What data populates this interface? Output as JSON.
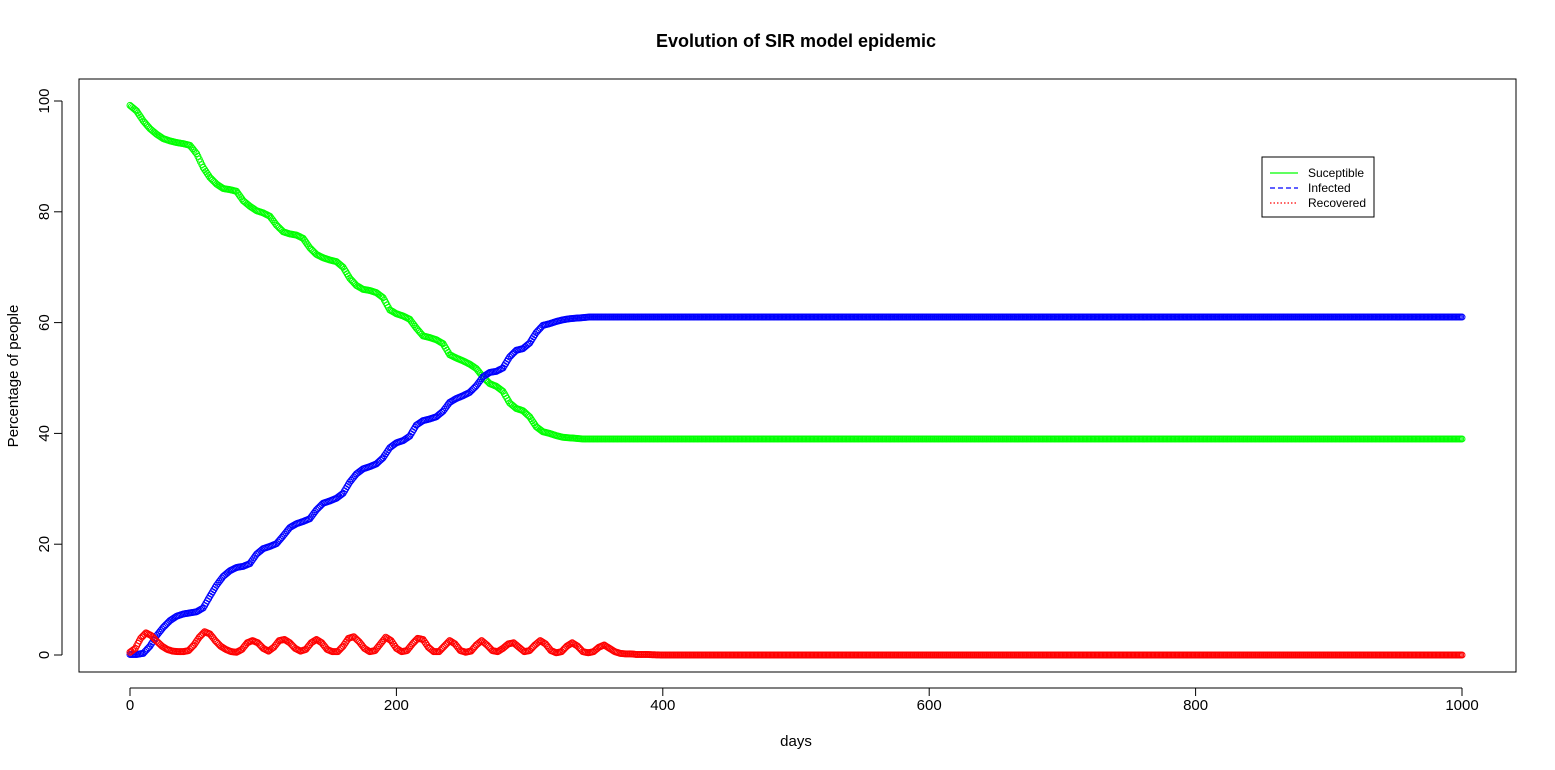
{
  "chart_data": {
    "type": "scatter",
    "title": "Evolution of SIR model epidemic",
    "xlabel": "days",
    "ylabel": "Percentage of people",
    "xlim": [
      0,
      1000
    ],
    "ylim": [
      0,
      100
    ],
    "xticks": [
      0,
      200,
      400,
      600,
      800,
      1000
    ],
    "yticks": [
      0,
      20,
      40,
      60,
      80,
      100
    ],
    "grid": false,
    "legend_position": "top-right",
    "series": [
      {
        "name": "Suceptible",
        "color": "#00ff00",
        "legend_style": "solid",
        "x": [
          0,
          5,
          10,
          15,
          20,
          25,
          30,
          35,
          40,
          45,
          50,
          55,
          60,
          65,
          70,
          75,
          80,
          85,
          90,
          95,
          100,
          105,
          110,
          115,
          120,
          125,
          130,
          135,
          140,
          145,
          150,
          155,
          160,
          165,
          170,
          175,
          180,
          185,
          190,
          195,
          200,
          205,
          210,
          215,
          220,
          225,
          230,
          235,
          240,
          245,
          250,
          255,
          260,
          265,
          270,
          275,
          280,
          285,
          290,
          295,
          300,
          305,
          310,
          315,
          320,
          325,
          330,
          335,
          340,
          345,
          350,
          355,
          360,
          365,
          370,
          375,
          380,
          385,
          390,
          395,
          400,
          420,
          450,
          500,
          600,
          700,
          800,
          900,
          1000
        ],
        "y": [
          99.2,
          98.2,
          96.4,
          95.0,
          94.0,
          93.2,
          92.8,
          92.5,
          92.3,
          92.0,
          90.5,
          88.0,
          86.2,
          85.0,
          84.2,
          84.0,
          83.7,
          82.0,
          81.0,
          80.2,
          79.8,
          79.2,
          77.6,
          76.4,
          76.0,
          75.8,
          75.2,
          73.5,
          72.3,
          71.7,
          71.3,
          71.0,
          70.0,
          68.0,
          66.7,
          66.0,
          65.8,
          65.4,
          64.5,
          62.3,
          61.6,
          61.2,
          60.6,
          59.0,
          57.6,
          57.3,
          56.9,
          56.2,
          54.2,
          53.6,
          53.1,
          52.5,
          51.7,
          50.2,
          49.0,
          48.5,
          47.6,
          45.5,
          44.5,
          44.1,
          43.0,
          41.2,
          40.3,
          40.0,
          39.6,
          39.3,
          39.2,
          39.1,
          39.0,
          39.0,
          39.0,
          39.0,
          39.0,
          39.0,
          39.0,
          39.0,
          39.0,
          39.0,
          39.0,
          39.0,
          39.0,
          39.0,
          39.0,
          39.0,
          39.0,
          39.0,
          39.0,
          39.0,
          39.0
        ]
      },
      {
        "name": "Infected",
        "color": "#0000ff",
        "legend_style": "dashed",
        "x": [
          0,
          5,
          10,
          15,
          20,
          25,
          30,
          35,
          40,
          45,
          50,
          55,
          60,
          65,
          70,
          75,
          80,
          85,
          90,
          95,
          100,
          105,
          110,
          115,
          120,
          125,
          130,
          135,
          140,
          145,
          150,
          155,
          160,
          165,
          170,
          175,
          180,
          185,
          190,
          195,
          200,
          205,
          210,
          215,
          220,
          225,
          230,
          235,
          240,
          245,
          250,
          255,
          260,
          265,
          270,
          275,
          280,
          285,
          290,
          295,
          300,
          305,
          310,
          315,
          320,
          325,
          330,
          335,
          340,
          345,
          350,
          355,
          360,
          365,
          370,
          375,
          380,
          385,
          390,
          395,
          400,
          420,
          450,
          500,
          600,
          700,
          800,
          900,
          1000
        ],
        "y": [
          0.1,
          0.1,
          0.3,
          1.6,
          3.5,
          5.0,
          6.2,
          7.0,
          7.4,
          7.6,
          7.8,
          8.5,
          10.6,
          12.6,
          14.2,
          15.2,
          15.8,
          16.0,
          16.5,
          18.2,
          19.2,
          19.6,
          20.1,
          21.5,
          23.0,
          23.7,
          24.1,
          24.6,
          26.2,
          27.4,
          27.8,
          28.3,
          29.2,
          31.2,
          32.7,
          33.6,
          34.0,
          34.5,
          35.6,
          37.4,
          38.3,
          38.7,
          39.5,
          41.5,
          42.3,
          42.6,
          43.0,
          44.0,
          45.6,
          46.3,
          46.8,
          47.4,
          48.6,
          50.2,
          51.0,
          51.2,
          51.8,
          53.8,
          55.0,
          55.3,
          56.3,
          58.2,
          59.5,
          59.8,
          60.2,
          60.5,
          60.7,
          60.8,
          60.9,
          61.0,
          61.0,
          61.0,
          61.0,
          61.0,
          61.0,
          61.0,
          61.0,
          61.0,
          61.0,
          61.0,
          61.0,
          61.0,
          61.0,
          61.0,
          61.0,
          61.0,
          61.0,
          61.0,
          61.0
        ]
      },
      {
        "name": "Recovered",
        "color": "#ff0000",
        "legend_style": "dotted",
        "x": [
          0,
          4,
          8,
          12,
          16,
          20,
          24,
          28,
          32,
          36,
          40,
          44,
          48,
          52,
          56,
          60,
          64,
          68,
          72,
          76,
          80,
          84,
          88,
          92,
          96,
          100,
          104,
          108,
          112,
          116,
          120,
          124,
          128,
          132,
          136,
          140,
          144,
          148,
          152,
          156,
          160,
          164,
          168,
          172,
          176,
          180,
          184,
          188,
          192,
          196,
          200,
          204,
          208,
          212,
          216,
          220,
          224,
          228,
          232,
          236,
          240,
          244,
          248,
          252,
          256,
          260,
          264,
          268,
          272,
          276,
          280,
          284,
          288,
          292,
          296,
          300,
          304,
          308,
          312,
          316,
          320,
          324,
          328,
          332,
          336,
          340,
          344,
          348,
          352,
          356,
          360,
          364,
          368,
          372,
          376,
          380,
          384,
          388,
          392,
          396,
          400,
          420,
          450,
          500,
          600,
          700,
          800,
          900,
          1000
        ],
        "y": [
          0.5,
          1.2,
          3.0,
          4.0,
          3.5,
          2.5,
          1.6,
          1.0,
          0.7,
          0.6,
          0.6,
          0.8,
          1.8,
          3.2,
          4.2,
          3.8,
          2.6,
          1.6,
          1.0,
          0.6,
          0.5,
          1.0,
          2.2,
          2.6,
          2.2,
          1.2,
          0.7,
          1.4,
          2.6,
          2.8,
          2.2,
          1.2,
          0.7,
          1.0,
          2.2,
          2.8,
          2.2,
          1.0,
          0.6,
          0.6,
          1.6,
          3.0,
          3.3,
          2.4,
          1.2,
          0.6,
          0.8,
          2.0,
          3.2,
          2.6,
          1.2,
          0.6,
          0.8,
          2.0,
          3.0,
          2.8,
          1.4,
          0.6,
          0.6,
          1.6,
          2.6,
          2.0,
          0.8,
          0.5,
          0.7,
          1.8,
          2.6,
          1.8,
          0.8,
          0.6,
          1.2,
          2.0,
          2.2,
          1.4,
          0.6,
          0.8,
          1.8,
          2.6,
          2.0,
          0.8,
          0.4,
          0.6,
          1.6,
          2.2,
          1.6,
          0.6,
          0.4,
          0.6,
          1.4,
          1.8,
          1.2,
          0.6,
          0.3,
          0.2,
          0.2,
          0.1,
          0.1,
          0.1,
          0.05,
          0.02,
          0.0,
          0.0,
          0.0,
          0.0,
          0.0,
          0.0,
          0.0,
          0.0,
          0.0
        ]
      }
    ]
  }
}
